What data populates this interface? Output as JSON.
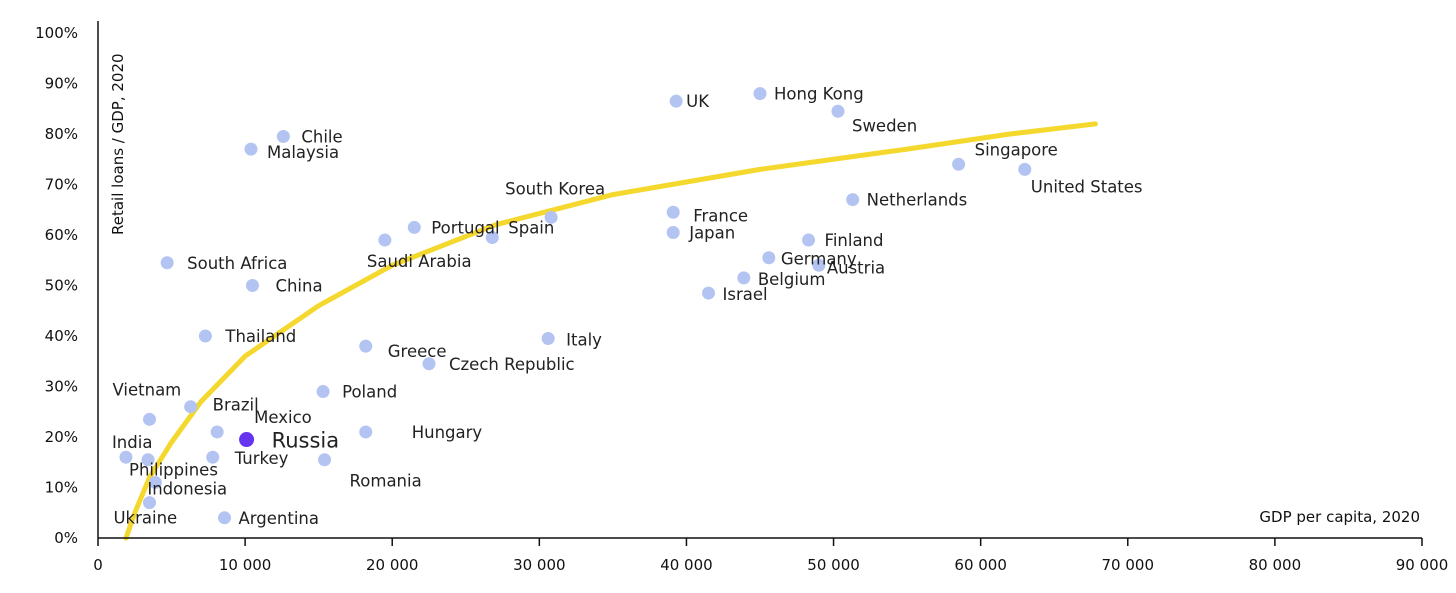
{
  "chart_data": {
    "type": "scatter",
    "title": "",
    "xlabel": "GDP per capita, 2020",
    "ylabel": "Retail loans / GDP, 2020",
    "xlim": [
      0,
      90000
    ],
    "ylim": [
      0,
      100
    ],
    "x_ticks": [
      0,
      10000,
      20000,
      30000,
      40000,
      50000,
      60000,
      70000,
      80000,
      90000
    ],
    "x_tick_labels": [
      "0",
      "10 000",
      "20 000",
      "30 000",
      "40 000",
      "50 000",
      "60 000",
      "70 000",
      "80 000",
      "90 000"
    ],
    "y_ticks": [
      0,
      10,
      20,
      30,
      40,
      50,
      60,
      70,
      80,
      90,
      100
    ],
    "y_tick_labels": [
      "0%",
      "10%",
      "20%",
      "30%",
      "40%",
      "50%",
      "60%",
      "70%",
      "80%",
      "90%",
      "100%"
    ],
    "grid": false,
    "colors": {
      "point": "#b3c4f2",
      "highlight": "#6633ee",
      "trend": "#f5d82e",
      "axis": "#111111"
    },
    "trend_line": {
      "x": [
        1900,
        2500,
        3500,
        5000,
        7000,
        10000,
        15000,
        20000,
        27000,
        35000,
        45000,
        55000,
        62000,
        67800
      ],
      "y": [
        0,
        5,
        12,
        19,
        27,
        36,
        46,
        54,
        62,
        68,
        73,
        77,
        80,
        82
      ]
    },
    "points": [
      {
        "label": "UK",
        "x": 39300,
        "y": 86.5
      },
      {
        "label": "Hong Kong",
        "x": 45000,
        "y": 88
      },
      {
        "label": "Sweden",
        "x": 50300,
        "y": 84.5
      },
      {
        "label": "Chile",
        "x": 12600,
        "y": 79.5
      },
      {
        "label": "Malaysia",
        "x": 10400,
        "y": 77
      },
      {
        "label": "Singapore",
        "x": 58500,
        "y": 74
      },
      {
        "label": "United States",
        "x": 63000,
        "y": 73
      },
      {
        "label": "Netherlands",
        "x": 51300,
        "y": 67
      },
      {
        "label": "South Korea",
        "x": 30800,
        "y": 63.5
      },
      {
        "label": "France",
        "x": 39100,
        "y": 64.5
      },
      {
        "label": "Japan",
        "x": 39100,
        "y": 60.5
      },
      {
        "label": "Portugal",
        "x": 21500,
        "y": 61.5
      },
      {
        "label": "Spain",
        "x": 26800,
        "y": 59.5
      },
      {
        "label": "Saudi Arabia",
        "x": 19500,
        "y": 59
      },
      {
        "label": "Finland",
        "x": 48300,
        "y": 59
      },
      {
        "label": "Germany",
        "x": 45600,
        "y": 55.5
      },
      {
        "label": "Austria",
        "x": 49000,
        "y": 54
      },
      {
        "label": "Belgium",
        "x": 43900,
        "y": 51.5
      },
      {
        "label": "Israel",
        "x": 41500,
        "y": 48.5
      },
      {
        "label": "South Africa",
        "x": 4700,
        "y": 54.5
      },
      {
        "label": "China",
        "x": 10500,
        "y": 50
      },
      {
        "label": "Thailand",
        "x": 7300,
        "y": 40
      },
      {
        "label": "Greece",
        "x": 18200,
        "y": 38
      },
      {
        "label": "Italy",
        "x": 30600,
        "y": 39.5
      },
      {
        "label": "Czech Republic",
        "x": 22500,
        "y": 34.5
      },
      {
        "label": "Poland",
        "x": 15300,
        "y": 29
      },
      {
        "label": "Vietnam",
        "x": 3500,
        "y": 23.5
      },
      {
        "label": "Brazil",
        "x": 6300,
        "y": 26
      },
      {
        "label": "Mexico",
        "x": 8100,
        "y": 21
      },
      {
        "label": "Russia",
        "x": 10100,
        "y": 19.5,
        "highlight": true
      },
      {
        "label": "India",
        "x": 1900,
        "y": 16
      },
      {
        "label": "Philippines",
        "x": 3400,
        "y": 15.5
      },
      {
        "label": "Turkey",
        "x": 7800,
        "y": 16
      },
      {
        "label": "Romania",
        "x": 15400,
        "y": 15.5
      },
      {
        "label": "Hungary",
        "x": 18200,
        "y": 21
      },
      {
        "label": "Indonesia",
        "x": 3900,
        "y": 11
      },
      {
        "label": "Ukraine",
        "x": 3500,
        "y": 7
      },
      {
        "label": "Argentina",
        "x": 8600,
        "y": 4
      }
    ]
  }
}
